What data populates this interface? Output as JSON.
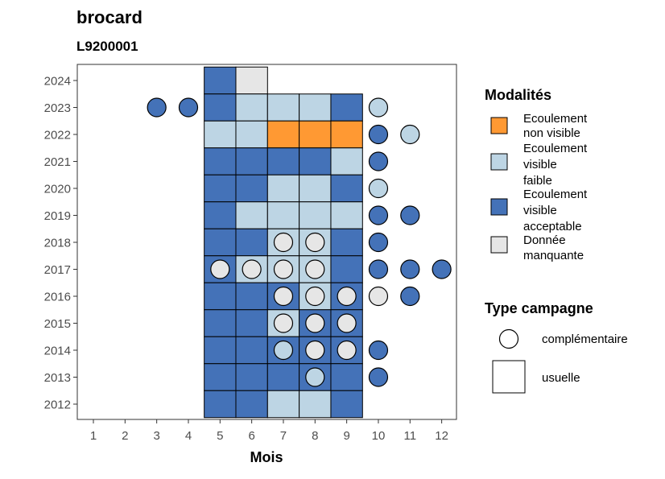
{
  "chart_data": {
    "type": "heatmap",
    "title": "brocard",
    "subtitle": "L9200001",
    "xlabel": "Mois",
    "ylabel": "",
    "x_ticks": [
      1,
      2,
      3,
      4,
      5,
      6,
      7,
      8,
      9,
      10,
      11,
      12
    ],
    "y_ticks": [
      2012,
      2013,
      2014,
      2015,
      2016,
      2017,
      2018,
      2019,
      2020,
      2021,
      2022,
      2023,
      2024
    ],
    "grid": false,
    "legend_placement": "right",
    "modalites": [
      {
        "key": "nv",
        "label": "Ecoulement non visible",
        "lines": [
          "Ecoulement",
          "non visible"
        ],
        "color": "#FF9933"
      },
      {
        "key": "vf",
        "label": "Ecoulement visible faible",
        "lines": [
          "Ecoulement",
          "visible",
          "faible"
        ],
        "color": "#BDD5E4"
      },
      {
        "key": "va",
        "label": "Ecoulement visible acceptable",
        "lines": [
          "Ecoulement",
          "visible",
          "acceptable"
        ],
        "color": "#4472B8"
      },
      {
        "key": "dm",
        "label": "Donnée manquante",
        "lines": [
          "Donnée",
          "manquante"
        ],
        "color": "#E6E6E6"
      }
    ],
    "type_campagne_title": "Type campagne",
    "type_campagne": [
      {
        "key": "complementaire",
        "label": "complémentaire",
        "shape": "circle"
      },
      {
        "key": "usuelle",
        "label": "usuelle",
        "shape": "square"
      }
    ],
    "usuelle": [
      {
        "year": 2024,
        "month": 5,
        "modalite": "va"
      },
      {
        "year": 2024,
        "month": 6,
        "modalite": "dm"
      },
      {
        "year": 2023,
        "month": 5,
        "modalite": "va"
      },
      {
        "year": 2023,
        "month": 6,
        "modalite": "vf"
      },
      {
        "year": 2023,
        "month": 7,
        "modalite": "vf"
      },
      {
        "year": 2023,
        "month": 8,
        "modalite": "vf"
      },
      {
        "year": 2023,
        "month": 9,
        "modalite": "va"
      },
      {
        "year": 2022,
        "month": 5,
        "modalite": "vf"
      },
      {
        "year": 2022,
        "month": 6,
        "modalite": "vf"
      },
      {
        "year": 2022,
        "month": 7,
        "modalite": "nv"
      },
      {
        "year": 2022,
        "month": 8,
        "modalite": "nv"
      },
      {
        "year": 2022,
        "month": 9,
        "modalite": "nv"
      },
      {
        "year": 2021,
        "month": 5,
        "modalite": "va"
      },
      {
        "year": 2021,
        "month": 6,
        "modalite": "va"
      },
      {
        "year": 2021,
        "month": 7,
        "modalite": "va"
      },
      {
        "year": 2021,
        "month": 8,
        "modalite": "va"
      },
      {
        "year": 2021,
        "month": 9,
        "modalite": "vf"
      },
      {
        "year": 2020,
        "month": 5,
        "modalite": "va"
      },
      {
        "year": 2020,
        "month": 6,
        "modalite": "va"
      },
      {
        "year": 2020,
        "month": 7,
        "modalite": "vf"
      },
      {
        "year": 2020,
        "month": 8,
        "modalite": "vf"
      },
      {
        "year": 2020,
        "month": 9,
        "modalite": "va"
      },
      {
        "year": 2019,
        "month": 5,
        "modalite": "va"
      },
      {
        "year": 2019,
        "month": 6,
        "modalite": "vf"
      },
      {
        "year": 2019,
        "month": 7,
        "modalite": "vf"
      },
      {
        "year": 2019,
        "month": 8,
        "modalite": "vf"
      },
      {
        "year": 2019,
        "month": 9,
        "modalite": "vf"
      },
      {
        "year": 2018,
        "month": 5,
        "modalite": "va"
      },
      {
        "year": 2018,
        "month": 6,
        "modalite": "va"
      },
      {
        "year": 2018,
        "month": 7,
        "modalite": "vf"
      },
      {
        "year": 2018,
        "month": 8,
        "modalite": "vf"
      },
      {
        "year": 2018,
        "month": 9,
        "modalite": "va"
      },
      {
        "year": 2017,
        "month": 5,
        "modalite": "va"
      },
      {
        "year": 2017,
        "month": 6,
        "modalite": "vf"
      },
      {
        "year": 2017,
        "month": 7,
        "modalite": "vf"
      },
      {
        "year": 2017,
        "month": 8,
        "modalite": "vf"
      },
      {
        "year": 2017,
        "month": 9,
        "modalite": "va"
      },
      {
        "year": 2016,
        "month": 5,
        "modalite": "va"
      },
      {
        "year": 2016,
        "month": 6,
        "modalite": "va"
      },
      {
        "year": 2016,
        "month": 7,
        "modalite": "va"
      },
      {
        "year": 2016,
        "month": 8,
        "modalite": "vf"
      },
      {
        "year": 2016,
        "month": 9,
        "modalite": "va"
      },
      {
        "year": 2015,
        "month": 5,
        "modalite": "va"
      },
      {
        "year": 2015,
        "month": 6,
        "modalite": "va"
      },
      {
        "year": 2015,
        "month": 7,
        "modalite": "vf"
      },
      {
        "year": 2015,
        "month": 8,
        "modalite": "va"
      },
      {
        "year": 2015,
        "month": 9,
        "modalite": "va"
      },
      {
        "year": 2014,
        "month": 5,
        "modalite": "va"
      },
      {
        "year": 2014,
        "month": 6,
        "modalite": "va"
      },
      {
        "year": 2014,
        "month": 7,
        "modalite": "va"
      },
      {
        "year": 2014,
        "month": 8,
        "modalite": "va"
      },
      {
        "year": 2014,
        "month": 9,
        "modalite": "va"
      },
      {
        "year": 2013,
        "month": 5,
        "modalite": "va"
      },
      {
        "year": 2013,
        "month": 6,
        "modalite": "va"
      },
      {
        "year": 2013,
        "month": 7,
        "modalite": "va"
      },
      {
        "year": 2013,
        "month": 8,
        "modalite": "va"
      },
      {
        "year": 2013,
        "month": 9,
        "modalite": "va"
      },
      {
        "year": 2012,
        "month": 5,
        "modalite": "va"
      },
      {
        "year": 2012,
        "month": 6,
        "modalite": "va"
      },
      {
        "year": 2012,
        "month": 7,
        "modalite": "vf"
      },
      {
        "year": 2012,
        "month": 8,
        "modalite": "vf"
      },
      {
        "year": 2012,
        "month": 9,
        "modalite": "va"
      }
    ],
    "complementaire": [
      {
        "year": 2023,
        "month": 3,
        "modalite": "va"
      },
      {
        "year": 2023,
        "month": 4,
        "modalite": "va"
      },
      {
        "year": 2023,
        "month": 10,
        "modalite": "vf"
      },
      {
        "year": 2022,
        "month": 10,
        "modalite": "va"
      },
      {
        "year": 2022,
        "month": 11,
        "modalite": "vf"
      },
      {
        "year": 2021,
        "month": 10,
        "modalite": "va"
      },
      {
        "year": 2020,
        "month": 10,
        "modalite": "vf"
      },
      {
        "year": 2019,
        "month": 10,
        "modalite": "va"
      },
      {
        "year": 2019,
        "month": 11,
        "modalite": "va"
      },
      {
        "year": 2018,
        "month": 7,
        "modalite": "dm"
      },
      {
        "year": 2018,
        "month": 8,
        "modalite": "dm"
      },
      {
        "year": 2018,
        "month": 10,
        "modalite": "va"
      },
      {
        "year": 2017,
        "month": 5,
        "modalite": "dm"
      },
      {
        "year": 2017,
        "month": 6,
        "modalite": "dm"
      },
      {
        "year": 2017,
        "month": 7,
        "modalite": "dm"
      },
      {
        "year": 2017,
        "month": 8,
        "modalite": "dm"
      },
      {
        "year": 2017,
        "month": 10,
        "modalite": "va"
      },
      {
        "year": 2017,
        "month": 11,
        "modalite": "va"
      },
      {
        "year": 2017,
        "month": 12,
        "modalite": "va"
      },
      {
        "year": 2016,
        "month": 7,
        "modalite": "dm"
      },
      {
        "year": 2016,
        "month": 8,
        "modalite": "dm"
      },
      {
        "year": 2016,
        "month": 9,
        "modalite": "dm"
      },
      {
        "year": 2016,
        "month": 10,
        "modalite": "dm"
      },
      {
        "year": 2016,
        "month": 11,
        "modalite": "va"
      },
      {
        "year": 2015,
        "month": 7,
        "modalite": "dm"
      },
      {
        "year": 2015,
        "month": 8,
        "modalite": "dm"
      },
      {
        "year": 2015,
        "month": 9,
        "modalite": "dm"
      },
      {
        "year": 2014,
        "month": 7,
        "modalite": "vf"
      },
      {
        "year": 2014,
        "month": 8,
        "modalite": "dm"
      },
      {
        "year": 2014,
        "month": 9,
        "modalite": "dm"
      },
      {
        "year": 2014,
        "month": 10,
        "modalite": "va"
      },
      {
        "year": 2013,
        "month": 8,
        "modalite": "vf"
      },
      {
        "year": 2013,
        "month": 10,
        "modalite": "va"
      }
    ]
  }
}
